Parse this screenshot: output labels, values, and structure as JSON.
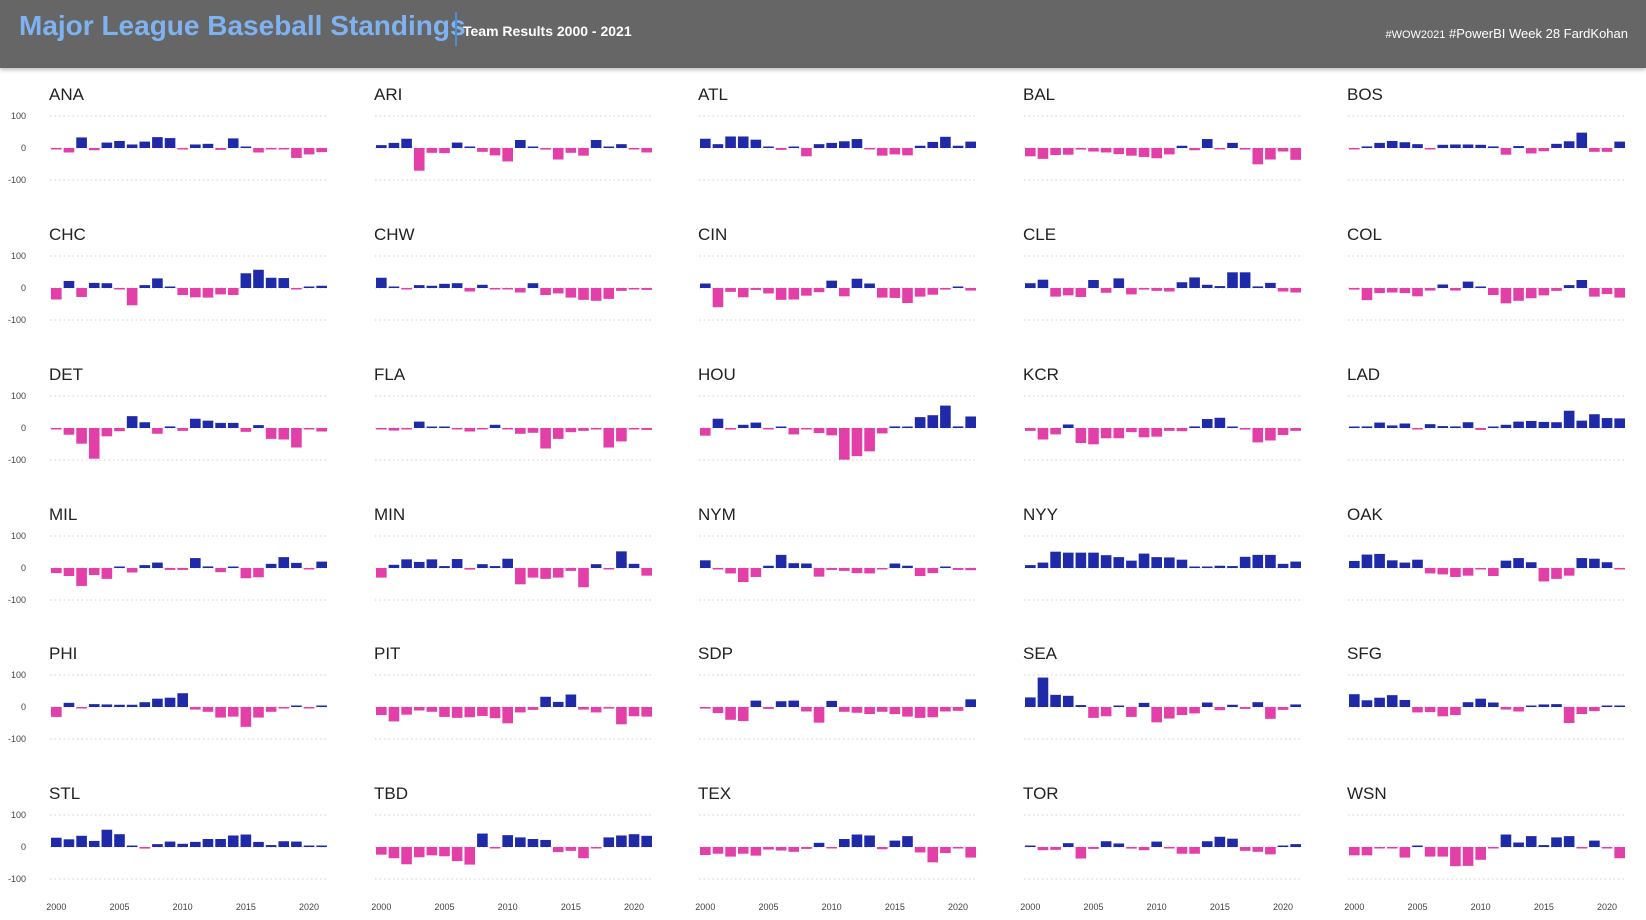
{
  "header": {
    "title": "Major League Baseball Standings",
    "subtitle": "Team Results 2000 - 2021",
    "credit_tag": "#WOW2021",
    "credit_rest": " #PowerBI Week 28 FardKohan"
  },
  "colors": {
    "positive": "#1f2aa8",
    "negative": "#e23fa8",
    "gridline": "#cfcfcf",
    "header_bg": "#666666",
    "title": "#7fb2f0"
  },
  "chart_data": {
    "type": "bar",
    "layout": "small-multiples",
    "x": [
      2000,
      2001,
      2002,
      2003,
      2004,
      2005,
      2006,
      2007,
      2008,
      2009,
      2010,
      2011,
      2012,
      2013,
      2014,
      2015,
      2016,
      2017,
      2018,
      2019,
      2020,
      2021
    ],
    "xticks": [
      "2000",
      "2005",
      "2010",
      "2015",
      "2020"
    ],
    "yticks": [
      "100",
      "0",
      "-100"
    ],
    "ylim": [
      -100,
      100
    ],
    "series": [
      {
        "name": "ANA",
        "values": [
          -4,
          -14,
          33,
          -7,
          17,
          22,
          11,
          20,
          34,
          31,
          -4,
          11,
          13,
          -6,
          30,
          2,
          -14,
          -4,
          -1,
          -31,
          -20,
          -13
        ]
      },
      {
        "name": "ARI",
        "values": [
          9,
          16,
          29,
          -71,
          -15,
          -16,
          17,
          2,
          -12,
          -23,
          -42,
          25,
          0,
          -5,
          -36,
          -15,
          -24,
          25,
          4,
          12,
          -2,
          -14
        ]
      },
      {
        "name": "ATL",
        "values": [
          29,
          12,
          36,
          36,
          26,
          0,
          -6,
          2,
          -26,
          12,
          16,
          21,
          28,
          -4,
          -24,
          -20,
          -23,
          7,
          19,
          35,
          7,
          20
        ]
      },
      {
        "name": "BAL",
        "values": [
          -26,
          -34,
          -22,
          -21,
          -5,
          -11,
          -14,
          -19,
          -24,
          -28,
          -32,
          -20,
          7,
          -7,
          28,
          -3,
          16,
          -5,
          -51,
          -36,
          -11,
          -37
        ]
      },
      {
        "name": "BOS",
        "values": [
          -1,
          5,
          16,
          22,
          18,
          12,
          -2,
          10,
          11,
          11,
          10,
          5,
          -21,
          6,
          -17,
          -10,
          13,
          21,
          48,
          -12,
          -12,
          20
        ]
      },
      {
        "name": "CHC",
        "values": [
          -36,
          22,
          -28,
          16,
          15,
          -1,
          -54,
          9,
          30,
          2,
          -22,
          -29,
          -30,
          -20,
          -22,
          46,
          57,
          32,
          31,
          -3,
          3,
          7
        ]
      },
      {
        "name": "CHW",
        "values": [
          32,
          3,
          -2,
          9,
          7,
          13,
          15,
          -11,
          10,
          -3,
          -1,
          -14,
          15,
          -22,
          -17,
          -30,
          -37,
          -40,
          -34,
          -9,
          -1,
          -6
        ]
      },
      {
        "name": "CIN",
        "values": [
          14,
          -60,
          -12,
          -29,
          -6,
          -17,
          -37,
          -36,
          -24,
          -13,
          23,
          -26,
          29,
          14,
          -30,
          -31,
          -47,
          -27,
          -21,
          -5,
          4,
          -8
        ]
      },
      {
        "name": "CLE",
        "values": [
          15,
          26,
          -27,
          -23,
          -28,
          25,
          -15,
          30,
          -20,
          -5,
          -9,
          -11,
          18,
          33,
          10,
          6,
          49,
          49,
          5,
          16,
          -11,
          -14
        ]
      },
      {
        "name": "COL",
        "values": [
          -5,
          -38,
          -16,
          -14,
          -16,
          -26,
          -8,
          11,
          -8,
          20,
          2,
          -22,
          -48,
          -40,
          -32,
          -23,
          -9,
          9,
          25,
          -27,
          -19,
          -30
        ]
      },
      {
        "name": "DET",
        "values": [
          -2,
          -21,
          -49,
          -96,
          -26,
          -10,
          37,
          18,
          -18,
          5,
          -9,
          29,
          23,
          16,
          16,
          -12,
          9,
          -34,
          -36,
          -61,
          -3,
          -11
        ]
      },
      {
        "name": "FLA",
        "values": [
          -4,
          -8,
          -1,
          20,
          3,
          3,
          -2,
          -11,
          -2,
          10,
          -4,
          -18,
          -15,
          -64,
          -34,
          -13,
          -9,
          -3,
          -61,
          -42,
          -3,
          -6
        ]
      },
      {
        "name": "HOU",
        "values": [
          -24,
          29,
          -5,
          10,
          17,
          -3,
          0,
          -20,
          -4,
          -16,
          -23,
          -99,
          -88,
          -73,
          -17,
          5,
          4,
          34,
          40,
          70,
          5,
          36
        ]
      },
      {
        "name": "KCR",
        "values": [
          -9,
          -36,
          -20,
          11,
          -47,
          -51,
          -32,
          -32,
          -13,
          -29,
          -27,
          -9,
          -10,
          5,
          28,
          32,
          0,
          -5,
          -45,
          -39,
          -22,
          -9
        ]
      },
      {
        "name": "LAD",
        "values": [
          3,
          5,
          17,
          8,
          14,
          -4,
          12,
          6,
          5,
          18,
          -6,
          1,
          10,
          20,
          22,
          19,
          18,
          54,
          23,
          43,
          31,
          30
        ]
      },
      {
        "name": "MIL",
        "values": [
          -16,
          -25,
          -56,
          -22,
          -34,
          1,
          -14,
          9,
          17,
          -6,
          -6,
          31,
          5,
          -13,
          3,
          -32,
          -29,
          13,
          34,
          16,
          -3,
          20
        ]
      },
      {
        "name": "MIN",
        "values": [
          -30,
          10,
          27,
          19,
          27,
          6,
          28,
          -5,
          12,
          6,
          29,
          -51,
          -30,
          -34,
          -30,
          -9,
          -60,
          12,
          -2,
          52,
          13,
          -24
        ]
      },
      {
        "name": "NYM",
        "values": [
          24,
          -3,
          -17,
          -44,
          -28,
          7,
          41,
          15,
          14,
          -27,
          -6,
          -9,
          -16,
          -17,
          -3,
          14,
          7,
          -25,
          -16,
          3,
          -6,
          -7
        ]
      },
      {
        "name": "NYY",
        "values": [
          9,
          17,
          51,
          48,
          48,
          48,
          40,
          34,
          23,
          45,
          34,
          33,
          26,
          4,
          2,
          7,
          6,
          35,
          41,
          41,
          13,
          20
        ]
      },
      {
        "name": "OAK",
        "values": [
          22,
          42,
          44,
          24,
          17,
          26,
          -17,
          -20,
          -28,
          -24,
          -1,
          -25,
          23,
          31,
          18,
          -42,
          -34,
          -24,
          31,
          29,
          18,
          -2
        ]
      },
      {
        "name": "PHI",
        "values": [
          -31,
          13,
          -1,
          9,
          8,
          7,
          7,
          15,
          26,
          29,
          43,
          -8,
          -15,
          -33,
          -30,
          -62,
          -33,
          -15,
          -4,
          0,
          -2,
          2
        ]
      },
      {
        "name": "PIT",
        "values": [
          -25,
          -45,
          -24,
          -11,
          -15,
          -31,
          -34,
          -32,
          -28,
          -35,
          -51,
          -17,
          -9,
          32,
          16,
          39,
          -8,
          -17,
          -5,
          -54,
          -29,
          -30
        ]
      },
      {
        "name": "SDP",
        "values": [
          -5,
          -19,
          -40,
          -44,
          20,
          -6,
          18,
          20,
          -14,
          -49,
          19,
          -15,
          -18,
          -22,
          -15,
          -22,
          -30,
          -34,
          -32,
          -14,
          -12,
          24
        ]
      },
      {
        "name": "SEA",
        "values": [
          30,
          92,
          38,
          35,
          6,
          -34,
          -29,
          3,
          -31,
          13,
          -48,
          -36,
          -25,
          -20,
          14,
          -10,
          7,
          -6,
          15,
          -37,
          -9,
          8
        ]
      },
      {
        "name": "SFG",
        "values": [
          40,
          21,
          29,
          37,
          22,
          -17,
          -16,
          -29,
          -25,
          15,
          26,
          14,
          -8,
          -14,
          3,
          8,
          9,
          -50,
          -22,
          -13,
          2,
          0
        ]
      },
      {
        "name": "STL",
        "values": [
          29,
          24,
          35,
          19,
          54,
          40,
          2,
          -5,
          9,
          17,
          10,
          16,
          25,
          25,
          36,
          39,
          16,
          6,
          18,
          17,
          1,
          0
        ]
      },
      {
        "name": "TBD",
        "values": [
          -24,
          -35,
          -54,
          -32,
          -26,
          -29,
          -44,
          -55,
          42,
          -3,
          37,
          30,
          25,
          22,
          -16,
          -12,
          -35,
          -3,
          30,
          36,
          40,
          35
        ]
      },
      {
        "name": "TEX",
        "values": [
          -25,
          -21,
          -30,
          -21,
          -27,
          -8,
          -11,
          -15,
          -6,
          13,
          -4,
          25,
          39,
          36,
          -7,
          20,
          34,
          -17,
          -48,
          -19,
          -2,
          -33
        ]
      },
      {
        "name": "TOR",
        "values": [
          3,
          -10,
          -9,
          12,
          -36,
          -6,
          18,
          11,
          -5,
          -10,
          17,
          -2,
          -21,
          -21,
          18,
          32,
          26,
          -12,
          -15,
          -23,
          3,
          9
        ]
      },
      {
        "name": "WSN",
        "values": [
          -26,
          -26,
          -2,
          -1,
          -33,
          0,
          -30,
          -30,
          -60,
          -59,
          -40,
          -1,
          39,
          14,
          34,
          6,
          30,
          34,
          -2,
          20,
          -4,
          -35
        ]
      }
    ]
  }
}
